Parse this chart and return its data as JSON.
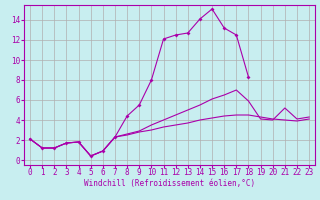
{
  "xlabel": "Windchill (Refroidissement éolien,°C)",
  "background_color": "#c8eef0",
  "grid_color": "#b0b0b0",
  "line_color": "#aa00aa",
  "x": [
    0,
    1,
    2,
    3,
    4,
    5,
    6,
    7,
    8,
    9,
    10,
    11,
    12,
    13,
    14,
    15,
    16,
    17,
    18,
    19,
    20,
    21,
    22,
    23
  ],
  "line1": [
    2.1,
    1.2,
    1.2,
    1.7,
    1.8,
    0.4,
    0.9,
    2.3,
    4.4,
    5.5,
    8.0,
    12.1,
    12.5,
    12.7,
    14.1,
    15.1,
    13.2,
    12.5,
    8.3,
    null,
    null,
    null,
    null,
    null
  ],
  "line2": [
    2.1,
    1.2,
    1.2,
    1.7,
    1.8,
    0.4,
    0.9,
    2.3,
    2.6,
    2.9,
    3.5,
    4.0,
    4.5,
    5.0,
    5.5,
    6.1,
    6.5,
    7.0,
    5.9,
    4.1,
    4.0,
    5.2,
    4.1,
    4.3
  ],
  "line3": [
    2.1,
    1.2,
    1.2,
    1.7,
    1.8,
    0.4,
    0.9,
    2.3,
    2.5,
    2.8,
    3.0,
    3.3,
    3.5,
    3.7,
    4.0,
    4.2,
    4.4,
    4.5,
    4.5,
    4.3,
    4.1,
    4.0,
    3.9,
    4.1
  ],
  "ylim": [
    -0.5,
    15.5
  ],
  "xlim": [
    -0.5,
    23.5
  ],
  "yticks": [
    0,
    2,
    4,
    6,
    8,
    10,
    12,
    14
  ],
  "xticks": [
    0,
    1,
    2,
    3,
    4,
    5,
    6,
    7,
    8,
    9,
    10,
    11,
    12,
    13,
    14,
    15,
    16,
    17,
    18,
    19,
    20,
    21,
    22,
    23
  ],
  "tick_fontsize": 5.5,
  "xlabel_fontsize": 5.5,
  "linewidth": 0.8,
  "markersize": 2.0
}
